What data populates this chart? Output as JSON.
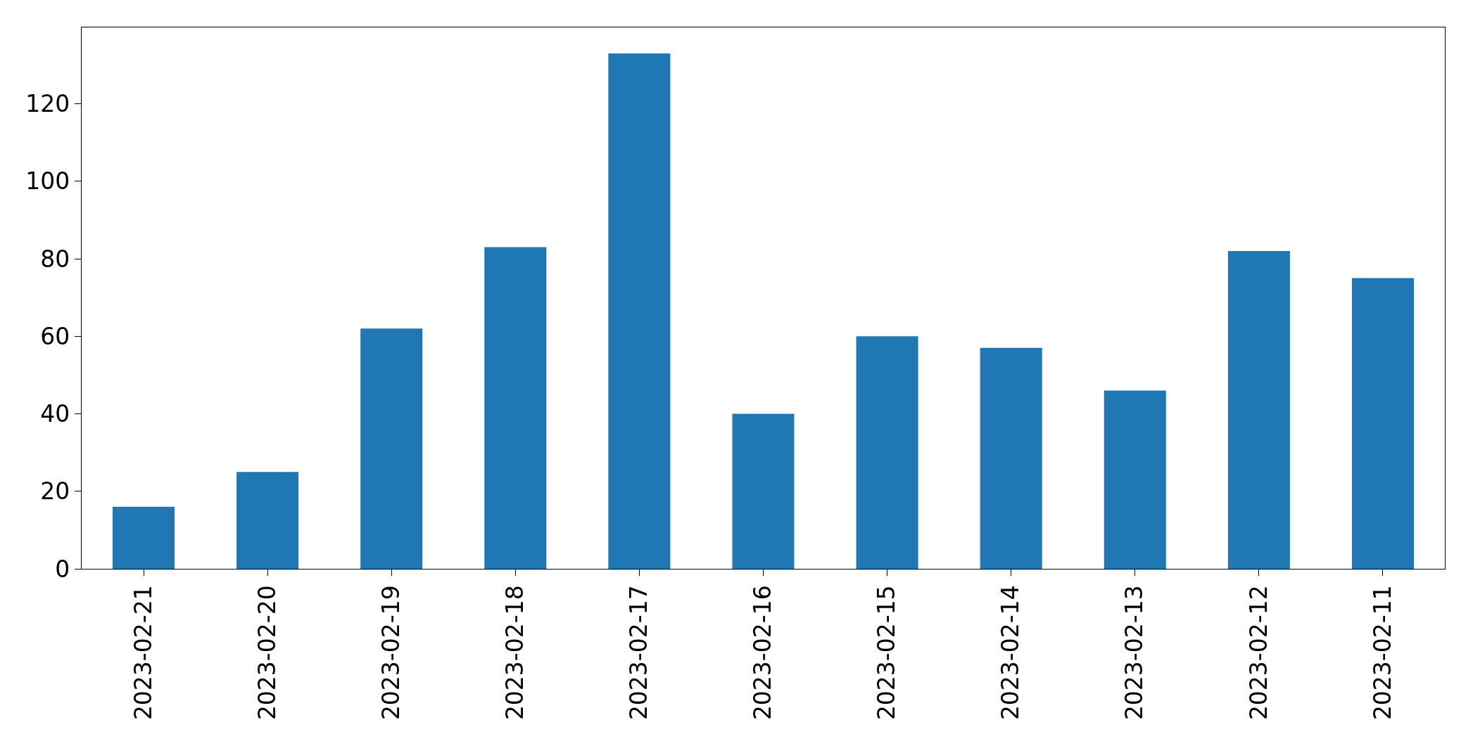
{
  "chart_data": {
    "type": "bar",
    "categories": [
      "2023-02-21",
      "2023-02-20",
      "2023-02-19",
      "2023-02-18",
      "2023-02-17",
      "2023-02-16",
      "2023-02-15",
      "2023-02-14",
      "2023-02-13",
      "2023-02-12",
      "2023-02-11"
    ],
    "values": [
      16,
      25,
      62,
      83,
      133,
      40,
      60,
      57,
      46,
      82,
      75
    ],
    "color": "#1f77b4",
    "ylim": [
      0,
      139.7
    ],
    "yticks": [
      0,
      20,
      40,
      60,
      80,
      100,
      120
    ],
    "legend": false
  }
}
